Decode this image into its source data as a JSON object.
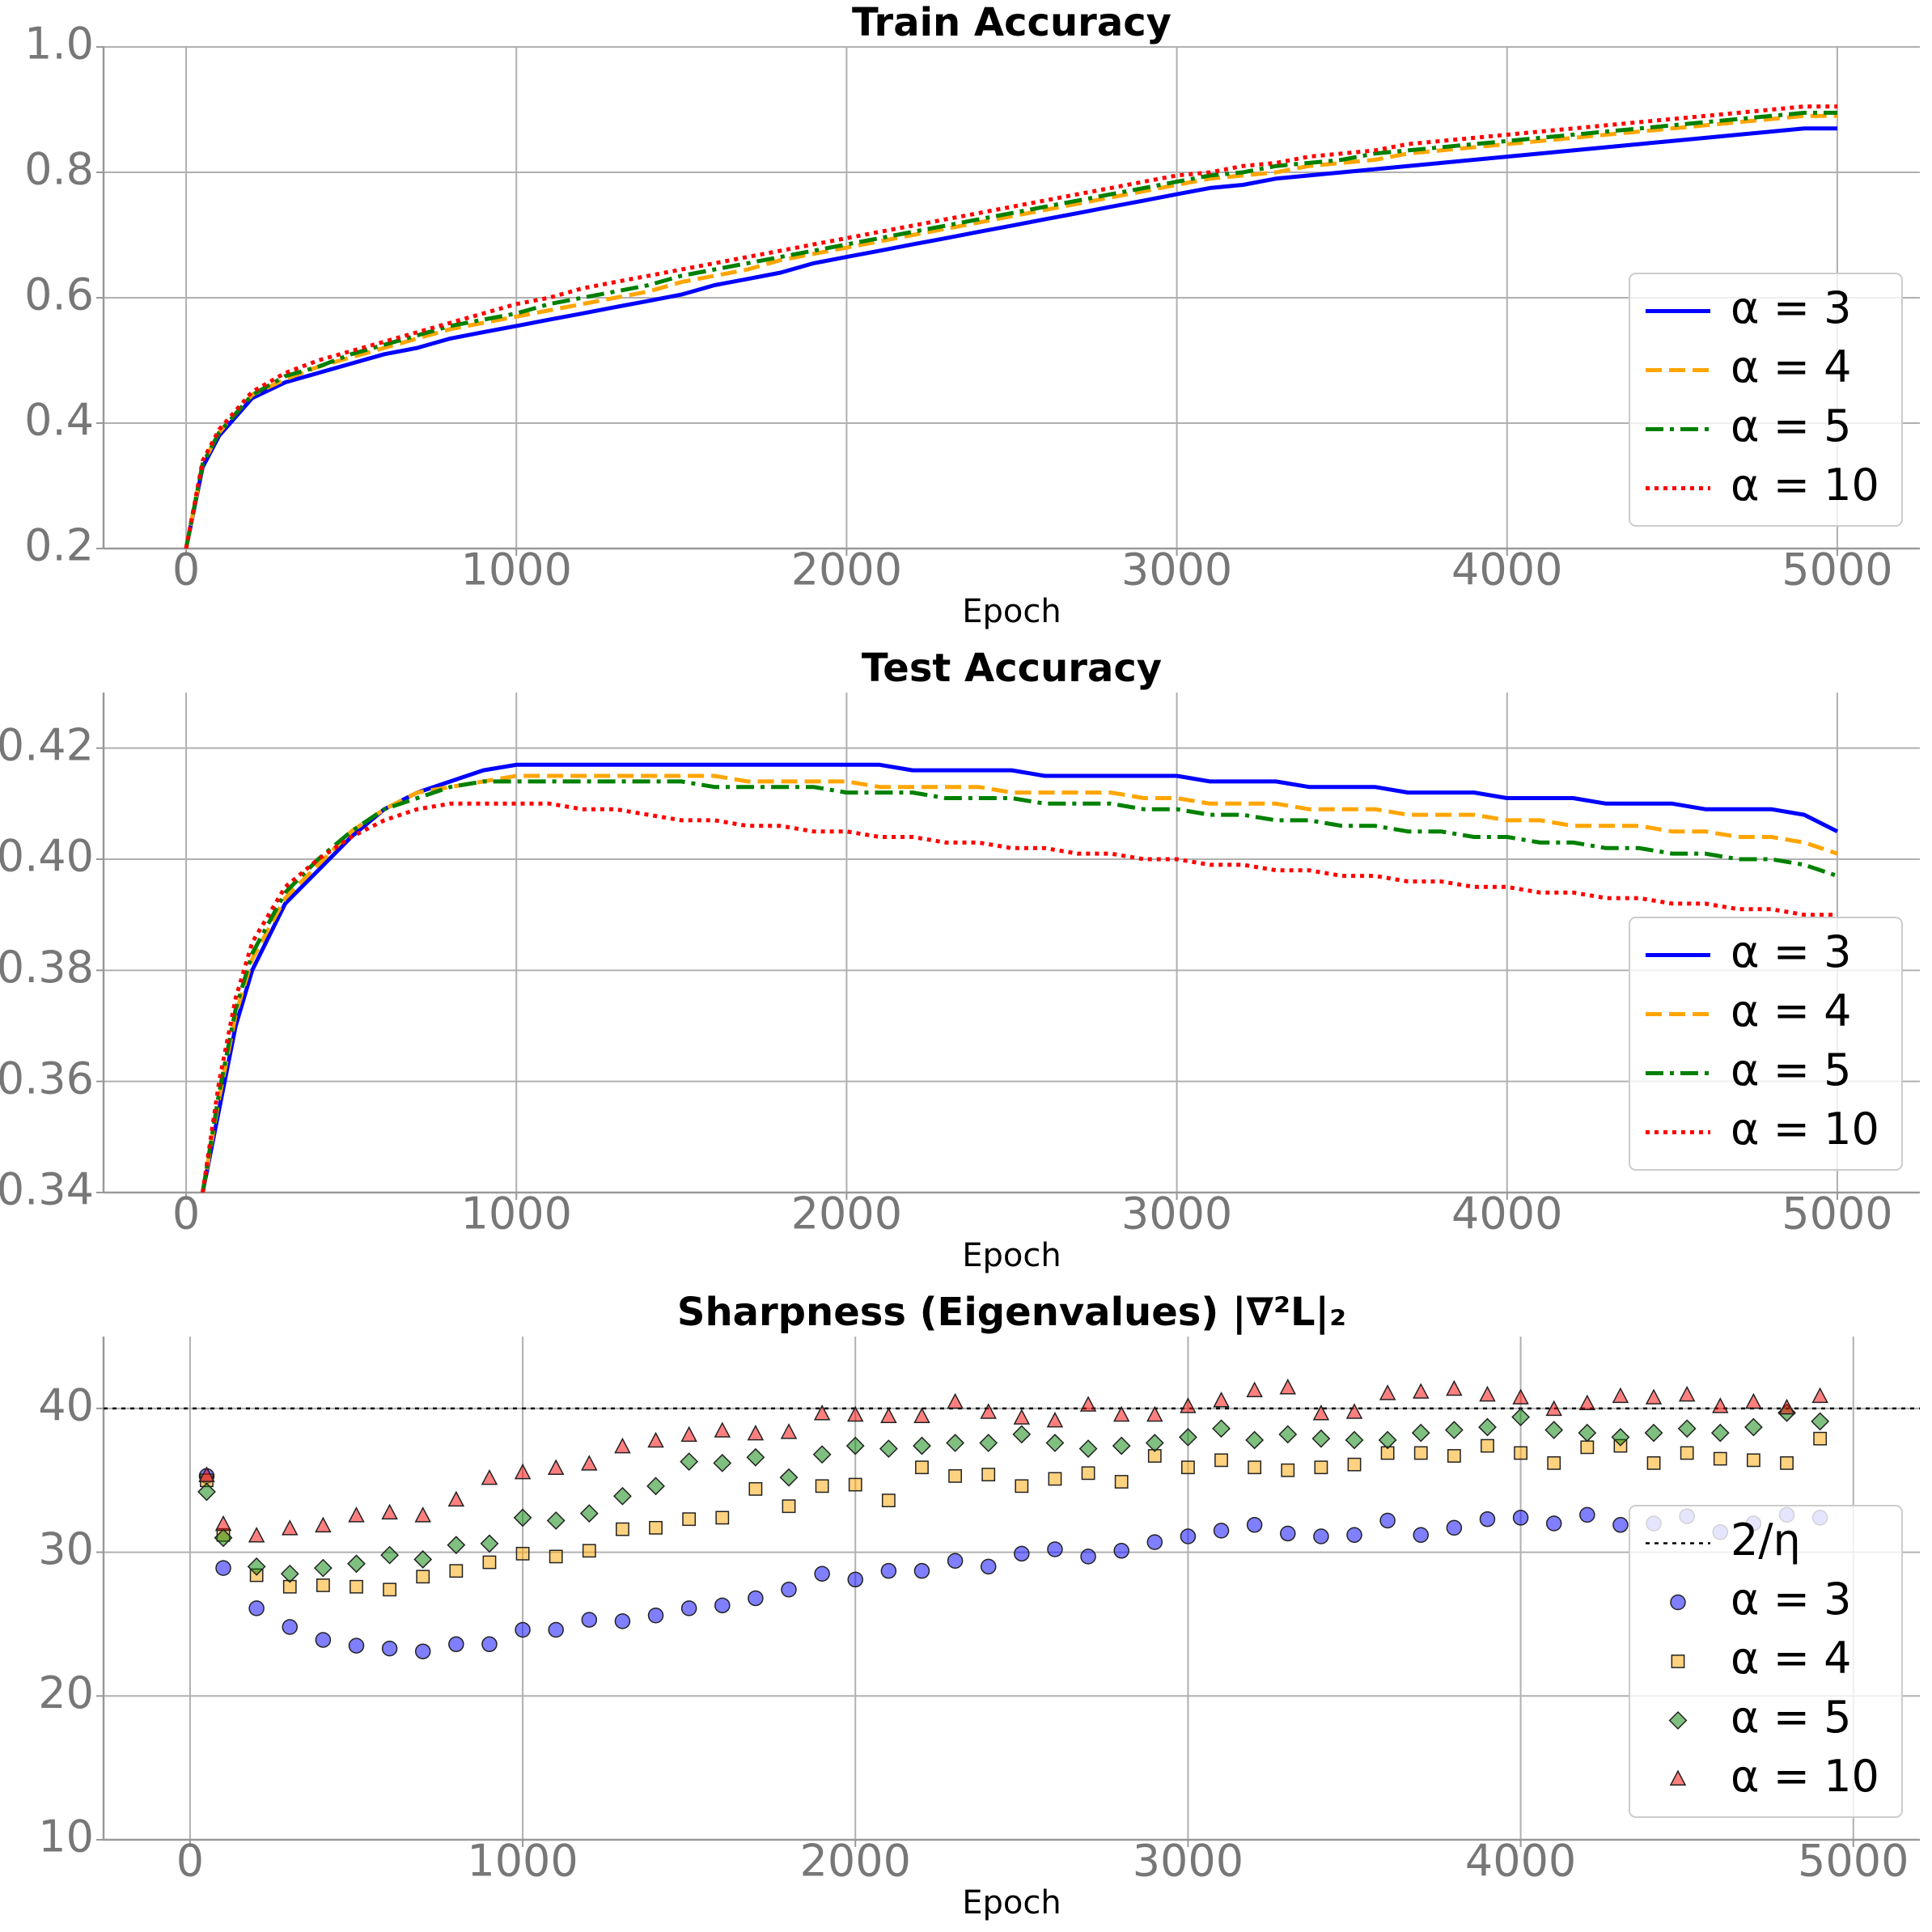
{
  "chart_data": [
    {
      "type": "line",
      "title": "Train Accuracy",
      "xlabel": "Epoch",
      "x": [
        0,
        50,
        100,
        200,
        300,
        400,
        500,
        600,
        700,
        800,
        900,
        1000,
        1100,
        1200,
        1300,
        1400,
        1500,
        1600,
        1700,
        1800,
        1900,
        2000,
        2100,
        2200,
        2300,
        2400,
        2500,
        2600,
        2700,
        2800,
        2900,
        3000,
        3100,
        3200,
        3300,
        3400,
        3500,
        3600,
        3700,
        3800,
        3900,
        4000,
        4100,
        4200,
        4300,
        4400,
        4500,
        4600,
        4700,
        4800,
        4900,
        5000
      ],
      "series": [
        {
          "name": "α = 3",
          "color": "#0000ff",
          "linestyle": "solid",
          "values": [
            0.2,
            0.33,
            0.38,
            0.44,
            0.465,
            0.48,
            0.495,
            0.51,
            0.52,
            0.535,
            0.545,
            0.555,
            0.565,
            0.575,
            0.585,
            0.595,
            0.605,
            0.62,
            0.63,
            0.64,
            0.655,
            0.665,
            0.675,
            0.685,
            0.695,
            0.705,
            0.715,
            0.725,
            0.735,
            0.745,
            0.755,
            0.765,
            0.775,
            0.78,
            0.79,
            0.795,
            0.8,
            0.805,
            0.81,
            0.815,
            0.82,
            0.825,
            0.83,
            0.835,
            0.84,
            0.845,
            0.85,
            0.855,
            0.86,
            0.865,
            0.87,
            0.87
          ]
        },
        {
          "name": "α = 4",
          "color": "#ffa500",
          "linestyle": "dashed",
          "values": [
            0.2,
            0.335,
            0.385,
            0.445,
            0.47,
            0.49,
            0.505,
            0.52,
            0.535,
            0.55,
            0.56,
            0.57,
            0.58,
            0.59,
            0.6,
            0.61,
            0.625,
            0.635,
            0.645,
            0.66,
            0.67,
            0.68,
            0.69,
            0.7,
            0.71,
            0.72,
            0.73,
            0.74,
            0.75,
            0.76,
            0.77,
            0.78,
            0.79,
            0.795,
            0.8,
            0.81,
            0.815,
            0.82,
            0.83,
            0.835,
            0.84,
            0.845,
            0.85,
            0.855,
            0.86,
            0.865,
            0.87,
            0.875,
            0.88,
            0.885,
            0.89,
            0.89
          ]
        },
        {
          "name": "α = 5",
          "color": "#008000",
          "linestyle": "dashdot",
          "values": [
            0.2,
            0.335,
            0.385,
            0.445,
            0.475,
            0.49,
            0.51,
            0.525,
            0.54,
            0.555,
            0.565,
            0.575,
            0.59,
            0.6,
            0.61,
            0.62,
            0.635,
            0.645,
            0.655,
            0.665,
            0.675,
            0.685,
            0.695,
            0.705,
            0.715,
            0.725,
            0.735,
            0.745,
            0.755,
            0.765,
            0.775,
            0.785,
            0.795,
            0.8,
            0.81,
            0.815,
            0.82,
            0.83,
            0.835,
            0.84,
            0.845,
            0.85,
            0.855,
            0.86,
            0.865,
            0.87,
            0.875,
            0.88,
            0.885,
            0.89,
            0.895,
            0.895
          ]
        },
        {
          "name": "α = 10",
          "color": "#ff0000",
          "linestyle": "dotted",
          "values": [
            0.2,
            0.34,
            0.39,
            0.45,
            0.48,
            0.5,
            0.515,
            0.53,
            0.545,
            0.56,
            0.575,
            0.59,
            0.6,
            0.615,
            0.625,
            0.635,
            0.645,
            0.655,
            0.665,
            0.675,
            0.685,
            0.695,
            0.705,
            0.715,
            0.725,
            0.735,
            0.745,
            0.755,
            0.765,
            0.775,
            0.785,
            0.795,
            0.8,
            0.81,
            0.815,
            0.825,
            0.83,
            0.835,
            0.845,
            0.85,
            0.855,
            0.86,
            0.865,
            0.87,
            0.875,
            0.88,
            0.885,
            0.89,
            0.895,
            0.9,
            0.905,
            0.905
          ]
        }
      ],
      "xlim": [
        -250,
        5250
      ],
      "ylim": [
        0.2,
        1.0
      ],
      "xticks": [
        0,
        1000,
        2000,
        3000,
        4000,
        5000
      ],
      "yticks": [
        0.2,
        0.4,
        0.6,
        0.8,
        {
          "value": 1.0,
          "label": "1.0"
        }
      ],
      "grid": true,
      "legend": "lower right"
    },
    {
      "type": "line",
      "title": "Test Accuracy",
      "xlabel": "Epoch",
      "x": [
        50,
        100,
        150,
        200,
        300,
        400,
        500,
        600,
        700,
        800,
        900,
        1000,
        1100,
        1200,
        1300,
        1400,
        1500,
        1600,
        1700,
        1800,
        1900,
        2000,
        2100,
        2200,
        2300,
        2400,
        2500,
        2600,
        2700,
        2800,
        2900,
        3000,
        3100,
        3200,
        3300,
        3400,
        3500,
        3600,
        3700,
        3800,
        3900,
        4000,
        4100,
        4200,
        4300,
        4400,
        4500,
        4600,
        4700,
        4800,
        4900,
        5000
      ],
      "series": [
        {
          "name": "α = 3",
          "color": "#0000ff",
          "linestyle": "solid",
          "values": [
            0.34,
            0.355,
            0.37,
            0.38,
            0.392,
            0.398,
            0.404,
            0.409,
            0.412,
            0.414,
            0.416,
            0.417,
            0.417,
            0.417,
            0.417,
            0.417,
            0.417,
            0.417,
            0.417,
            0.417,
            0.417,
            0.417,
            0.417,
            0.416,
            0.416,
            0.416,
            0.416,
            0.415,
            0.415,
            0.415,
            0.415,
            0.415,
            0.414,
            0.414,
            0.414,
            0.413,
            0.413,
            0.413,
            0.412,
            0.412,
            0.412,
            0.411,
            0.411,
            0.411,
            0.41,
            0.41,
            0.41,
            0.409,
            0.409,
            0.409,
            0.408,
            0.405
          ]
        },
        {
          "name": "α = 4",
          "color": "#ffa500",
          "linestyle": "dashed",
          "values": [
            0.34,
            0.357,
            0.372,
            0.382,
            0.393,
            0.399,
            0.405,
            0.409,
            0.412,
            0.413,
            0.414,
            0.415,
            0.415,
            0.415,
            0.415,
            0.415,
            0.415,
            0.415,
            0.414,
            0.414,
            0.414,
            0.414,
            0.413,
            0.413,
            0.413,
            0.413,
            0.412,
            0.412,
            0.412,
            0.412,
            0.411,
            0.411,
            0.41,
            0.41,
            0.41,
            0.409,
            0.409,
            0.409,
            0.408,
            0.408,
            0.408,
            0.407,
            0.407,
            0.406,
            0.406,
            0.406,
            0.405,
            0.405,
            0.404,
            0.404,
            0.403,
            0.401
          ]
        },
        {
          "name": "α = 5",
          "color": "#008000",
          "linestyle": "dashdot",
          "values": [
            0.34,
            0.358,
            0.373,
            0.383,
            0.394,
            0.4,
            0.405,
            0.409,
            0.411,
            0.413,
            0.414,
            0.414,
            0.414,
            0.414,
            0.414,
            0.414,
            0.414,
            0.413,
            0.413,
            0.413,
            0.413,
            0.412,
            0.412,
            0.412,
            0.411,
            0.411,
            0.411,
            0.41,
            0.41,
            0.41,
            0.409,
            0.409,
            0.408,
            0.408,
            0.407,
            0.407,
            0.406,
            0.406,
            0.405,
            0.405,
            0.404,
            0.404,
            0.403,
            0.403,
            0.402,
            0.402,
            0.401,
            0.401,
            0.4,
            0.4,
            0.399,
            0.397
          ]
        },
        {
          "name": "α = 10",
          "color": "#ff0000",
          "linestyle": "dotted",
          "values": [
            0.34,
            0.36,
            0.375,
            0.385,
            0.395,
            0.4,
            0.404,
            0.407,
            0.409,
            0.41,
            0.41,
            0.41,
            0.41,
            0.409,
            0.409,
            0.408,
            0.407,
            0.407,
            0.406,
            0.406,
            0.405,
            0.405,
            0.404,
            0.404,
            0.403,
            0.403,
            0.402,
            0.402,
            0.401,
            0.401,
            0.4,
            0.4,
            0.399,
            0.399,
            0.398,
            0.398,
            0.397,
            0.397,
            0.396,
            0.396,
            0.395,
            0.395,
            0.394,
            0.394,
            0.393,
            0.393,
            0.392,
            0.392,
            0.391,
            0.391,
            0.39,
            0.39
          ]
        }
      ],
      "xlim": [
        -250,
        5250
      ],
      "ylim": [
        0.34,
        0.43
      ],
      "xticks": [
        0,
        1000,
        2000,
        3000,
        4000,
        5000
      ],
      "yticks": [
        0.34,
        0.36,
        0.38,
        {
          "value": 0.4,
          "label": "0.40"
        },
        0.42
      ],
      "grid": true,
      "legend": "lower right"
    },
    {
      "type": "scatter",
      "title": "Sharpness (Eigenvalues) |∇²L|₂",
      "xlabel": "Epoch",
      "x": [
        50,
        100,
        200,
        300,
        400,
        500,
        600,
        700,
        800,
        900,
        1000,
        1100,
        1200,
        1300,
        1400,
        1500,
        1600,
        1700,
        1800,
        1900,
        2000,
        2100,
        2200,
        2300,
        2400,
        2500,
        2600,
        2700,
        2800,
        2900,
        3000,
        3100,
        3200,
        3300,
        3400,
        3500,
        3600,
        3700,
        3800,
        3900,
        4000,
        4100,
        4200,
        4300,
        4400,
        4500,
        4600,
        4700,
        4800,
        4900
      ],
      "hlines": [
        {
          "name": "2/η",
          "value": 40,
          "color": "#000000",
          "linestyle": "dotted"
        }
      ],
      "series": [
        {
          "name": "α = 3",
          "color": "#0000ff",
          "marker": "o",
          "values": [
            35.3,
            28.9,
            26.1,
            24.8,
            23.9,
            23.5,
            23.3,
            23.1,
            23.6,
            23.6,
            24.6,
            24.6,
            25.3,
            25.2,
            25.6,
            26.1,
            26.3,
            26.8,
            27.4,
            28.5,
            28.1,
            28.7,
            28.7,
            29.4,
            29.0,
            29.9,
            30.2,
            29.7,
            30.1,
            30.7,
            31.1,
            31.5,
            31.9,
            31.3,
            31.1,
            31.2,
            32.2,
            31.2,
            31.7,
            32.3,
            32.4,
            32.0,
            32.6,
            31.9,
            32.0,
            32.5,
            31.4,
            32.0,
            32.6,
            32.4
          ]
        },
        {
          "name": "α = 4",
          "color": "#ffa500",
          "marker": "s",
          "values": [
            35.0,
            31.2,
            28.4,
            27.6,
            27.7,
            27.6,
            27.4,
            28.3,
            28.7,
            29.3,
            29.9,
            29.7,
            30.1,
            31.6,
            31.7,
            32.3,
            32.4,
            34.4,
            33.2,
            34.6,
            34.7,
            33.6,
            35.9,
            35.3,
            35.4,
            34.6,
            35.1,
            35.5,
            34.9,
            36.7,
            35.9,
            36.4,
            35.9,
            35.7,
            35.9,
            36.1,
            36.9,
            36.9,
            36.7,
            37.4,
            36.9,
            36.2,
            37.3,
            37.4,
            36.2,
            36.9,
            36.5,
            36.4,
            36.2,
            37.9
          ]
        },
        {
          "name": "α = 5",
          "color": "#008000",
          "marker": "D",
          "values": [
            34.2,
            31.0,
            29.0,
            28.5,
            28.9,
            29.2,
            29.8,
            29.5,
            30.5,
            30.6,
            32.4,
            32.2,
            32.7,
            33.9,
            34.6,
            36.3,
            36.2,
            36.6,
            35.2,
            36.8,
            37.4,
            37.2,
            37.4,
            37.6,
            37.6,
            38.2,
            37.6,
            37.2,
            37.4,
            37.6,
            38.0,
            38.6,
            37.8,
            38.2,
            37.9,
            37.8,
            37.8,
            38.3,
            38.5,
            38.7,
            39.4,
            38.5,
            38.3,
            38.0,
            38.3,
            38.6,
            38.3,
            38.7,
            39.7,
            39.1
          ]
        },
        {
          "name": "α = 10",
          "color": "#ff0000",
          "marker": "^",
          "values": [
            35.3,
            31.9,
            31.1,
            31.6,
            31.8,
            32.5,
            32.7,
            32.5,
            33.6,
            35.1,
            35.5,
            35.8,
            36.1,
            37.3,
            37.7,
            38.1,
            38.4,
            38.2,
            38.3,
            39.6,
            39.5,
            39.4,
            39.4,
            40.4,
            39.7,
            39.3,
            39.1,
            40.2,
            39.5,
            39.5,
            40.1,
            40.5,
            41.2,
            41.4,
            39.6,
            39.7,
            41.0,
            41.1,
            41.3,
            40.9,
            40.7,
            39.9,
            40.3,
            40.8,
            40.7,
            40.9,
            40.1,
            40.4,
            40.0,
            40.8
          ]
        }
      ],
      "xlim": [
        -260,
        5200
      ],
      "ylim": [
        10,
        45
      ],
      "xticks": [
        0,
        1000,
        2000,
        3000,
        4000,
        5000
      ],
      "yticks": [
        10,
        20,
        30,
        40
      ],
      "grid": true,
      "legend": "lower right"
    }
  ]
}
